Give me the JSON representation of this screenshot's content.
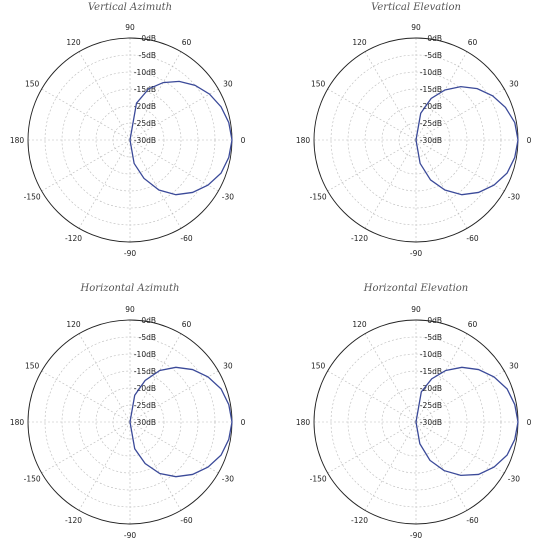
{
  "chart_data": [
    {
      "type": "polar",
      "title": "Vertical Azimuth",
      "angle_ticks": [
        "0",
        "30",
        "60",
        "90",
        "120",
        "150",
        "180",
        "-150",
        "-120",
        "-90",
        "-60",
        "-30"
      ],
      "ring_ticks": [
        "0dB",
        "-5dB",
        "-10dB",
        "-15dB",
        "-20dB",
        "-25dB",
        "-30dB"
      ],
      "r_range_db": [
        -30,
        0
      ],
      "series": [
        {
          "angles_deg": [
            0,
            10,
            20,
            30,
            40,
            50,
            60,
            70,
            80,
            90,
            -10,
            -20,
            -30,
            -40,
            -50,
            -60,
            -70,
            -80,
            -90
          ],
          "gain_db": [
            0,
            -0.5,
            -1.5,
            -3,
            -5,
            -7.5,
            -10.5,
            -14,
            -19,
            -30,
            -0.5,
            -1.5,
            -3.5,
            -6,
            -9,
            -13,
            -18,
            -23,
            -30
          ]
        }
      ]
    },
    {
      "type": "polar",
      "title": "Vertical Elevation",
      "angle_ticks": [
        "0",
        "30",
        "60",
        "90",
        "120",
        "150",
        "180",
        "-150",
        "-120",
        "-90",
        "-60",
        "-30"
      ],
      "ring_ticks": [
        "0dB",
        "-5dB",
        "-10dB",
        "-15dB",
        "-20dB",
        "-25dB",
        "-30dB"
      ],
      "r_range_db": [
        -30,
        0
      ],
      "series": [
        {
          "angles_deg": [
            0,
            10,
            20,
            30,
            40,
            50,
            60,
            70,
            80,
            90,
            -10,
            -20,
            -30,
            -40,
            -50,
            -60,
            -70,
            -80,
            -90
          ],
          "gain_db": [
            0,
            -0.5,
            -2,
            -4,
            -6.5,
            -9.5,
            -13,
            -17,
            -22,
            -30,
            -0.5,
            -1.5,
            -3.5,
            -6,
            -9,
            -13,
            -17.5,
            -23,
            -30
          ]
        }
      ]
    },
    {
      "type": "polar",
      "title": "Horizontal Azimuth",
      "angle_ticks": [
        "0",
        "30",
        "60",
        "90",
        "120",
        "150",
        "180",
        "-150",
        "-120",
        "-90",
        "-60",
        "-30"
      ],
      "ring_ticks": [
        "0dB",
        "-5dB",
        "-10dB",
        "-15dB",
        "-20dB",
        "-25dB",
        "-30dB"
      ],
      "r_range_db": [
        -30,
        0
      ],
      "series": [
        {
          "angles_deg": [
            0,
            10,
            20,
            30,
            40,
            50,
            60,
            70,
            80,
            90,
            -10,
            -20,
            -30,
            -40,
            -50,
            -60,
            -70,
            -80,
            -90
          ],
          "gain_db": [
            0,
            -0.5,
            -1.5,
            -3.5,
            -6,
            -9,
            -12.5,
            -17,
            -22,
            -30,
            -0.5,
            -1.5,
            -3.5,
            -6,
            -9,
            -12.5,
            -17,
            -22,
            -30
          ]
        }
      ]
    },
    {
      "type": "polar",
      "title": "Horizontal Elevation",
      "angle_ticks": [
        "0",
        "30",
        "60",
        "90",
        "120",
        "150",
        "180",
        "-150",
        "-120",
        "-90",
        "-60",
        "-30"
      ],
      "ring_ticks": [
        "0dB",
        "-5dB",
        "-10dB",
        "-15dB",
        "-20dB",
        "-25dB",
        "-30dB"
      ],
      "r_range_db": [
        -30,
        0
      ],
      "series": [
        {
          "angles_deg": [
            0,
            10,
            20,
            30,
            40,
            50,
            60,
            70,
            80,
            90,
            -10,
            -20,
            -30,
            -40,
            -50,
            -60,
            -70,
            -80,
            -90
          ],
          "gain_db": [
            0,
            -0.5,
            -1.5,
            -3.5,
            -6,
            -9,
            -12.5,
            -16.5,
            -21,
            -30,
            -0.5,
            -1.5,
            -3.5,
            -6,
            -9.5,
            -13.5,
            -18,
            -23.5,
            -30
          ]
        }
      ]
    }
  ],
  "colors": {
    "pattern": "#3b4a99",
    "outer_ring": "#222222",
    "grid": "#bbbbbb"
  }
}
